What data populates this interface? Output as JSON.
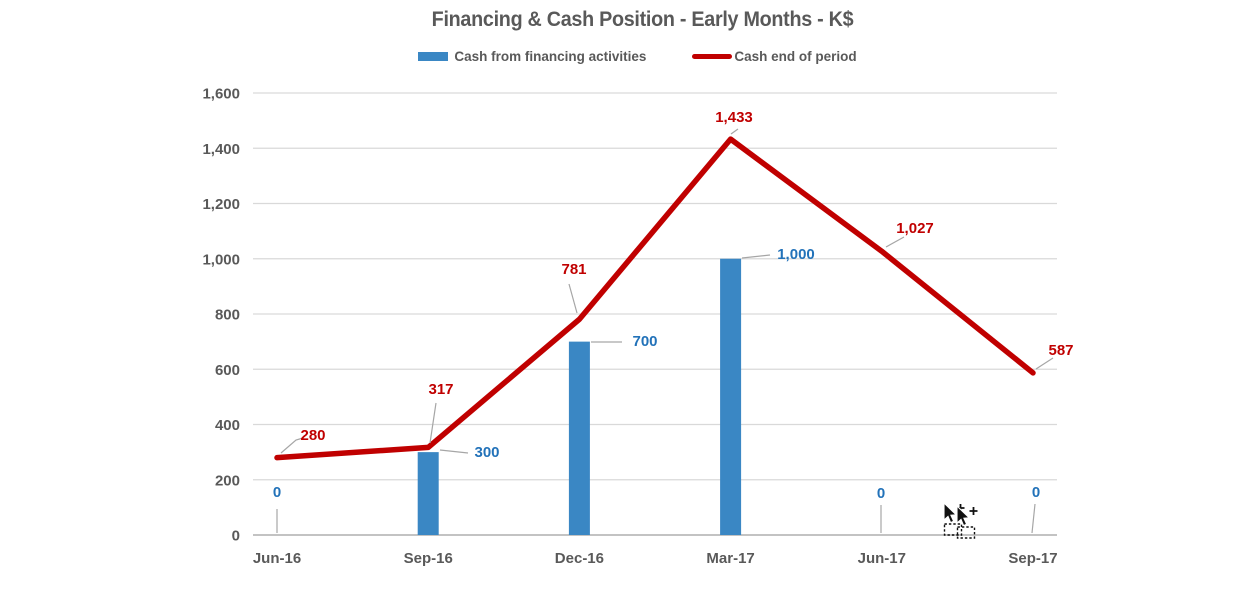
{
  "title": "Financing & Cash Position - Early Months - K$",
  "legend": {
    "items": [
      {
        "label": "Cash from financing activities",
        "swatch": "bar",
        "color": "#3A87C4"
      },
      {
        "label": "Cash end of period",
        "swatch": "line",
        "color": "#C00000"
      }
    ]
  },
  "chart_data": {
    "type": "bar+line combo",
    "title": "Financing & Cash Position - Early Months - K$",
    "categories": [
      "Jun-16",
      "Sep-16",
      "Dec-16",
      "Mar-17",
      "Jun-17",
      "Sep-17"
    ],
    "series": [
      {
        "name": "Cash from financing activities",
        "type": "bar",
        "color": "#3A87C4",
        "label_color": "#2272B9",
        "values": [
          0,
          300,
          700,
          1000,
          0,
          0
        ]
      },
      {
        "name": "Cash end of period",
        "type": "line",
        "color": "#C00000",
        "label_color": "#C00000",
        "values": [
          280,
          317,
          781,
          1433,
          1027,
          587
        ]
      }
    ],
    "ylim": [
      0,
      1600
    ],
    "ytick_step": 200,
    "yticks": [
      "0",
      "200",
      "400",
      "600",
      "800",
      "1,000",
      "1,200",
      "1,400",
      "1,600"
    ],
    "grid": "horizontal",
    "legend_position": "top",
    "data_labels": true,
    "axis_label_color": "#595959",
    "gridline_color": "#D9D9D9"
  },
  "cursor": {
    "name": "drag-copy-cursor"
  }
}
